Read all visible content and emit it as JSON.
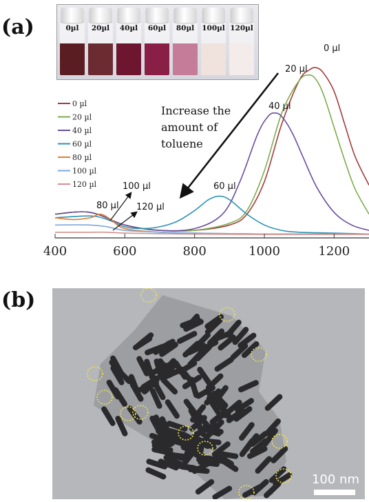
{
  "panels": {
    "a_label": "(a)",
    "b_label": "(b)"
  },
  "vials": [
    {
      "label": "0µl",
      "color": "#5a1e22"
    },
    {
      "label": "20µl",
      "color": "#6b2b30"
    },
    {
      "label": "40µl",
      "color": "#6e1530"
    },
    {
      "label": "60µl",
      "color": "#8a1f45"
    },
    {
      "label": "80µl",
      "color": "#c47c99"
    },
    {
      "label": "100µl",
      "color": "#f0e2dc"
    },
    {
      "label": "120µl",
      "color": "#f3ecea"
    }
  ],
  "chart_data": {
    "type": "line",
    "xlim": [
      400,
      1300
    ],
    "xticks": [
      400,
      600,
      800,
      1000,
      1200
    ],
    "xlabel": "",
    "ylabel": "",
    "grid": false,
    "legend_position": "left",
    "series": [
      {
        "name": "0 µl",
        "color": "#a33a3a",
        "label": "0 µl",
        "x": [
          400,
          500,
          600,
          700,
          800,
          900,
          950,
          1000,
          1050,
          1100,
          1130,
          1150,
          1170,
          1200,
          1230,
          1260,
          1300
        ],
        "y": [
          0.12,
          0.13,
          0.06,
          0.03,
          0.03,
          0.06,
          0.12,
          0.3,
          0.62,
          0.86,
          0.92,
          0.93,
          0.9,
          0.8,
          0.62,
          0.44,
          0.28
        ]
      },
      {
        "name": "20 µl",
        "color": "#7dab4c",
        "label": "20 µl",
        "x": [
          400,
          500,
          600,
          700,
          800,
          900,
          950,
          1000,
          1050,
          1100,
          1130,
          1150,
          1170,
          1200,
          1230,
          1260,
          1300
        ],
        "y": [
          0.12,
          0.13,
          0.06,
          0.03,
          0.03,
          0.07,
          0.14,
          0.36,
          0.68,
          0.86,
          0.89,
          0.86,
          0.78,
          0.6,
          0.42,
          0.26,
          0.12
        ]
      },
      {
        "name": "40 µl",
        "color": "#6a4c9c",
        "label": "40 µl",
        "x": [
          400,
          500,
          600,
          700,
          800,
          880,
          930,
          980,
          1010,
          1030,
          1050,
          1080,
          1110,
          1150,
          1200,
          1250,
          1300
        ],
        "y": [
          0.12,
          0.13,
          0.06,
          0.03,
          0.04,
          0.12,
          0.3,
          0.56,
          0.66,
          0.68,
          0.66,
          0.57,
          0.44,
          0.27,
          0.13,
          0.06,
          0.03
        ]
      },
      {
        "name": "60 µl",
        "color": "#2b93b3",
        "label": "60 µl",
        "x": [
          400,
          500,
          550,
          600,
          650,
          700,
          750,
          800,
          840,
          870,
          900,
          950,
          1000,
          1050,
          1100,
          1200,
          1300
        ],
        "y": [
          0.1,
          0.11,
          0.09,
          0.05,
          0.04,
          0.05,
          0.08,
          0.14,
          0.2,
          0.22,
          0.2,
          0.12,
          0.06,
          0.03,
          0.02,
          0.015,
          0.01
        ]
      },
      {
        "name": "80 µl",
        "color": "#e07b34",
        "label": "80 µl",
        "x": [
          400,
          450,
          500,
          530,
          560,
          600,
          700,
          800,
          1000,
          1300
        ],
        "y": [
          0.1,
          0.09,
          0.1,
          0.12,
          0.09,
          0.04,
          0.02,
          0.015,
          0.01,
          0.01
        ]
      },
      {
        "name": "100 µl",
        "color": "#7fa7dc",
        "label": "100 µl",
        "x": [
          400,
          500,
          550,
          600,
          700,
          800,
          1000,
          1300
        ],
        "y": [
          0.06,
          0.06,
          0.05,
          0.03,
          0.02,
          0.015,
          0.01,
          0.01
        ]
      },
      {
        "name": "120 µl",
        "color": "#d4908c",
        "label": "120 µl",
        "x": [
          400,
          500,
          550,
          600,
          700,
          800,
          1000,
          1300
        ],
        "y": [
          0.02,
          0.02,
          0.02,
          0.015,
          0.012,
          0.01,
          0.008,
          0.008
        ]
      }
    ],
    "annotations": {
      "arrow_text": [
        "Increase the",
        "amount of",
        "toluene"
      ]
    }
  },
  "tem": {
    "scale_label": "100 nm"
  }
}
